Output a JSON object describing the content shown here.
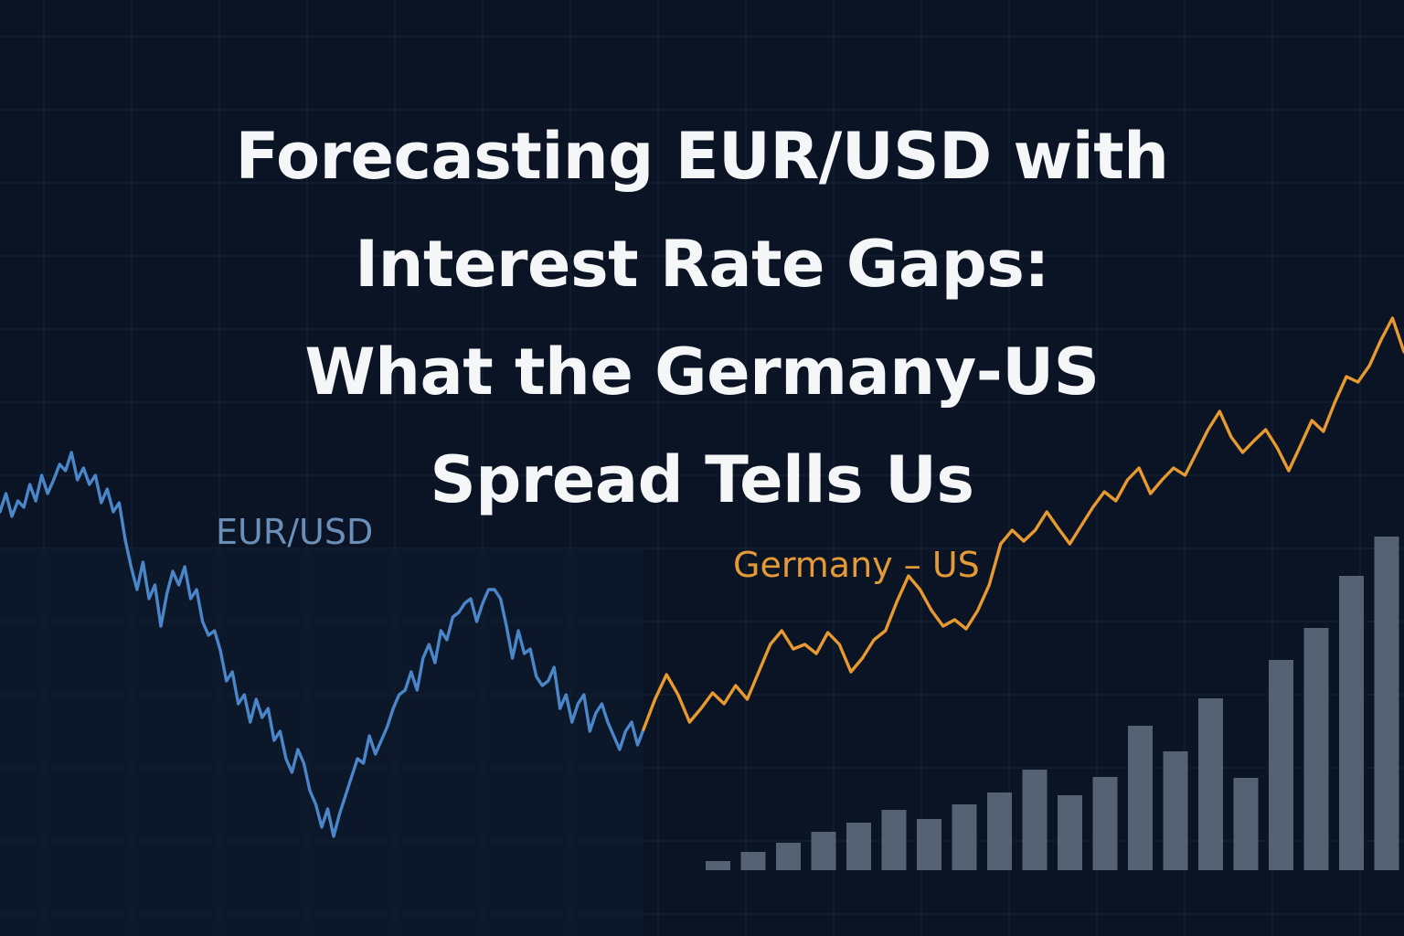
{
  "title_lines": [
    "Forecasting EUR/USD with",
    "Interest Rate Gaps:",
    "What the Germany-US",
    "Spread Tells Us"
  ],
  "colors": {
    "background": "#0b1424",
    "grid": "#18253a",
    "eurusd": "#4a86c8",
    "spread": "#e89a30",
    "bars": "#556273",
    "title": "#f4f6f8"
  },
  "chart_data": {
    "type": "line",
    "grid": true,
    "series_labels": {
      "eurusd": "EUR/USD",
      "spread": "Germany – US"
    },
    "series": [
      {
        "name": "EUR/USD",
        "values": [
          560,
          540,
          565,
          548,
          555,
          530,
          548,
          520,
          540,
          525,
          508,
          515,
          495,
          525,
          512,
          530,
          520,
          550,
          535,
          560,
          550,
          590,
          620,
          645,
          615,
          655,
          640,
          685,
          650,
          625,
          640,
          620,
          655,
          645,
          680,
          695,
          690,
          712,
          745,
          735,
          770,
          760,
          790,
          765,
          785,
          775,
          810,
          800,
          830,
          845,
          820,
          835,
          865,
          880,
          905,
          885,
          915,
          890,
          870,
          850,
          830,
          835,
          805,
          825,
          810,
          795,
          775,
          760,
          755,
          735,
          755,
          720,
          705,
          725,
          690,
          700,
          675,
          670,
          660,
          655,
          680,
          660,
          645,
          645,
          655,
          685,
          720,
          690,
          715,
          710,
          740,
          750,
          745,
          730,
          775,
          760,
          790,
          770,
          760,
          800,
          780,
          770,
          790,
          805,
          820,
          800,
          790,
          815,
          798
        ],
        "x_start": 0,
        "x_end": 704
      },
      {
        "name": "Germany – US",
        "values": [
          798,
          765,
          738,
          760,
          790,
          775,
          758,
          770,
          750,
          765,
          735,
          705,
          690,
          710,
          705,
          715,
          692,
          705,
          735,
          720,
          700,
          690,
          658,
          630,
          645,
          668,
          685,
          678,
          688,
          668,
          640,
          595,
          580,
          592,
          580,
          560,
          578,
          595,
          575,
          555,
          538,
          548,
          525,
          512,
          540,
          525,
          512,
          520,
          495,
          470,
          450,
          478,
          495,
          482,
          470,
          490,
          515,
          488,
          460,
          472,
          440,
          412,
          418,
          400,
          372,
          348,
          385
        ],
        "x_start": 704,
        "x_end": 1536
      },
      {
        "name": "bars",
        "type": "bar",
        "values": [
          10,
          20,
          30,
          42,
          52,
          66,
          56,
          72,
          85,
          110,
          82,
          102,
          158,
          130,
          188,
          101,
          230,
          265,
          322,
          365
        ]
      }
    ]
  }
}
